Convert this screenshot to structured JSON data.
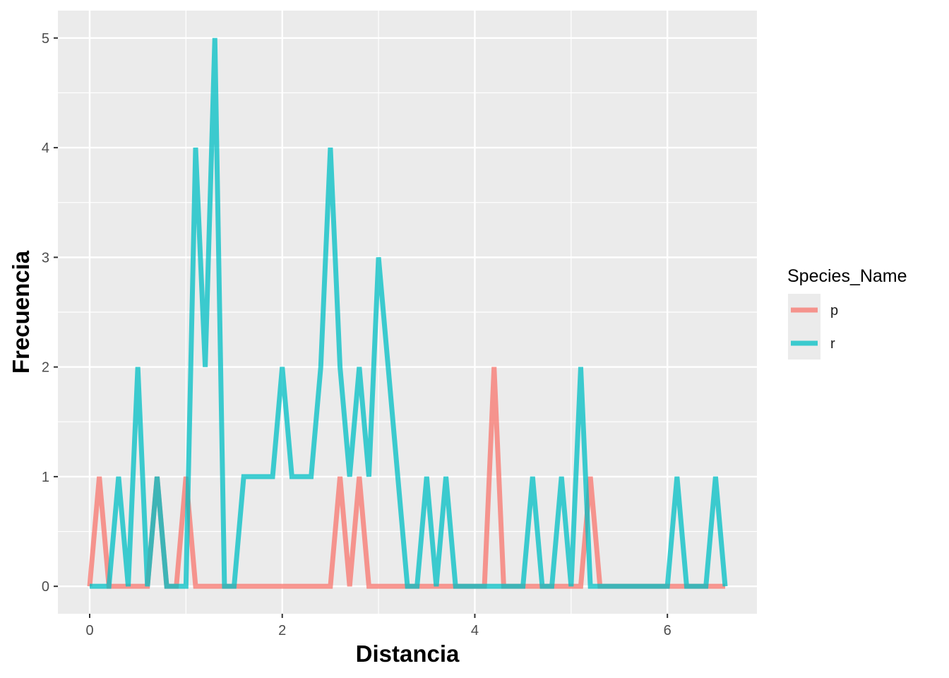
{
  "chart_data": {
    "type": "line",
    "xlabel": "Distancia",
    "ylabel": "Frecuencia",
    "xlim": [
      -0.33,
      6.93
    ],
    "ylim": [
      -0.25,
      5.25
    ],
    "x_ticks": [
      0,
      2,
      4,
      6
    ],
    "y_ticks": [
      0,
      1,
      2,
      3,
      4,
      5
    ],
    "grid": true,
    "legend": {
      "title": "Species_Name",
      "position": "right"
    },
    "series": [
      {
        "name": "p",
        "color": "#F8766D",
        "x": [
          0,
          0.1,
          0.2,
          0.3,
          0.4,
          0.5,
          0.6,
          0.7,
          0.8,
          0.9,
          1.0,
          1.1,
          1.2,
          1.3,
          1.4,
          1.5,
          1.6,
          1.7,
          1.8,
          1.9,
          2.0,
          2.1,
          2.2,
          2.3,
          2.4,
          2.5,
          2.6,
          2.7,
          2.8,
          2.9,
          3.0,
          3.1,
          3.2,
          3.3,
          3.4,
          3.5,
          3.6,
          3.7,
          3.8,
          3.9,
          4.0,
          4.1,
          4.2,
          4.3,
          4.4,
          4.5,
          4.6,
          4.7,
          4.8,
          4.9,
          5.0,
          5.1,
          5.2,
          5.3,
          5.4,
          5.5,
          5.6,
          5.7,
          5.8,
          5.9,
          6.0,
          6.1,
          6.2,
          6.3,
          6.4,
          6.5,
          6.6
        ],
        "y": [
          0,
          1,
          0,
          0,
          0,
          0,
          0,
          1,
          0,
          0,
          1,
          0,
          0,
          0,
          0,
          0,
          0,
          0,
          0,
          0,
          0,
          0,
          0,
          0,
          0,
          0,
          1,
          0,
          1,
          0,
          0,
          0,
          0,
          0,
          0,
          0,
          0,
          0,
          0,
          0,
          0,
          0,
          2,
          0,
          0,
          0,
          0,
          0,
          0,
          0,
          0,
          0,
          1,
          0,
          0,
          0,
          0,
          0,
          0,
          0,
          0,
          0,
          0,
          0,
          0,
          0,
          0
        ]
      },
      {
        "name": "r",
        "color": "#00BFC4",
        "x": [
          0,
          0.1,
          0.2,
          0.3,
          0.4,
          0.5,
          0.6,
          0.7,
          0.8,
          0.9,
          1.0,
          1.1,
          1.2,
          1.3,
          1.4,
          1.5,
          1.6,
          1.7,
          1.8,
          1.9,
          2.0,
          2.1,
          2.2,
          2.3,
          2.4,
          2.5,
          2.6,
          2.7,
          2.8,
          2.9,
          3.0,
          3.1,
          3.2,
          3.3,
          3.4,
          3.5,
          3.6,
          3.7,
          3.8,
          3.9,
          4.0,
          4.1,
          4.2,
          4.3,
          4.4,
          4.5,
          4.6,
          4.7,
          4.8,
          4.9,
          5.0,
          5.1,
          5.2,
          5.3,
          5.4,
          5.5,
          5.6,
          5.7,
          5.8,
          5.9,
          6.0,
          6.1,
          6.2,
          6.3,
          6.4,
          6.5,
          6.6
        ],
        "y": [
          0,
          0,
          0,
          1,
          0,
          2,
          0,
          1,
          0,
          0,
          0,
          4,
          2,
          5,
          0,
          0,
          1,
          1,
          1,
          1,
          2,
          1,
          1,
          1,
          2,
          4,
          2,
          1,
          2,
          1,
          3,
          2,
          1,
          0,
          0,
          1,
          0,
          1,
          0,
          0,
          0,
          0,
          0,
          0,
          0,
          0,
          1,
          0,
          0,
          1,
          0,
          2,
          0,
          0,
          0,
          0,
          0,
          0,
          0,
          0,
          0,
          1,
          0,
          0,
          0,
          1,
          0
        ]
      }
    ]
  }
}
